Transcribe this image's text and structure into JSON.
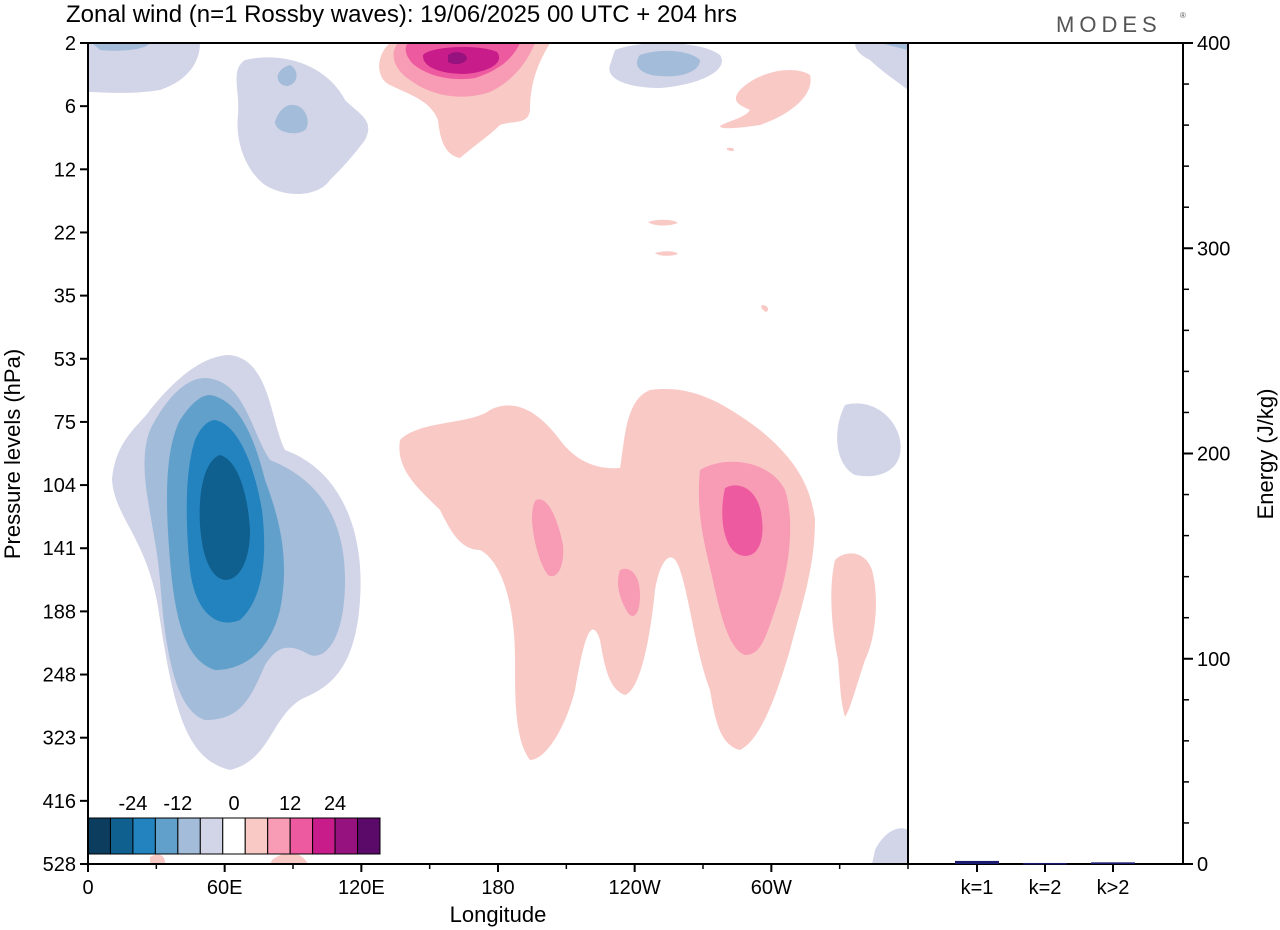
{
  "title": "Zonal wind (n=1 Rossby waves):  19/06/2025  00 UTC  + 204 hrs",
  "brand": "MODES",
  "chart_data": [
    {
      "type": "heatmap",
      "xlabel": "Longitude",
      "ylabel": "Pressure levels (hPa)",
      "x_ticks": [
        "0",
        "60E",
        "120E",
        "180",
        "120W",
        "60W"
      ],
      "y_ticks": [
        "2",
        "6",
        "12",
        "22",
        "35",
        "53",
        "75",
        "104",
        "141",
        "188",
        "248",
        "323",
        "416",
        "528"
      ],
      "colorbar": {
        "tick_labels": [
          "-24",
          "-12",
          "0",
          "12",
          "24"
        ],
        "levels": [
          -30,
          -24,
          -18,
          -12,
          -6,
          0,
          6,
          12,
          18,
          24,
          30
        ],
        "colors": [
          "#0c3c5e",
          "#0f5f8f",
          "#2283be",
          "#62a0cc",
          "#a2bcd9",
          "#d2d4e8",
          "#ffffff",
          "#f9c9c6",
          "#f89bb5",
          "#ee5aa0",
          "#c81c8b",
          "#96127f",
          "#5c0a6a"
        ]
      },
      "features": [
        {
          "sign": "negative",
          "center_lon": 60,
          "center_p": 141,
          "peak": -27
        },
        {
          "sign": "positive",
          "center_lon": 170,
          "center_p": 3,
          "peak": 27
        },
        {
          "sign": "positive",
          "center_lon": 285,
          "center_p": 125,
          "peak": 15
        },
        {
          "sign": "negative",
          "center_lon": 90,
          "center_p": 6,
          "peak": -9
        },
        {
          "sign": "negative",
          "center_lon": 250,
          "center_p": 3,
          "peak": -9
        }
      ]
    },
    {
      "type": "bar",
      "categories": [
        "k=1",
        "k=2",
        "k>2"
      ],
      "values": [
        1.5,
        0.5,
        0.8
      ],
      "ylabel": "Energy (J/kg)",
      "ylim": [
        0,
        400
      ],
      "y_ticks": [
        "0",
        "100",
        "200",
        "300",
        "400"
      ],
      "bar_color": "#1a1a6e"
    }
  ]
}
